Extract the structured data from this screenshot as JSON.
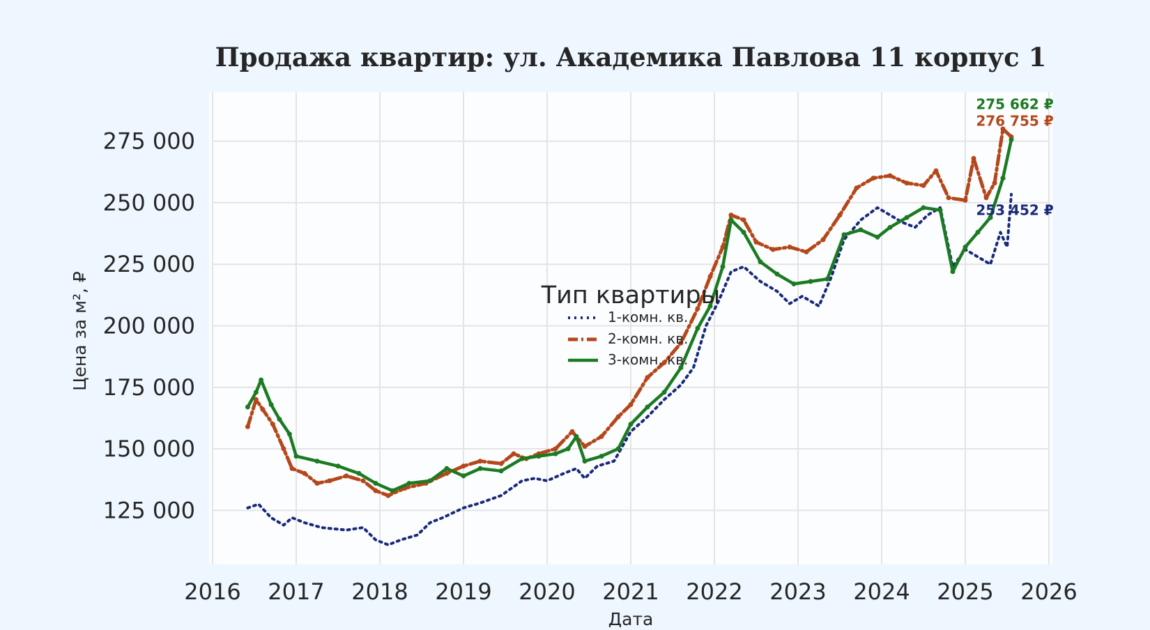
{
  "chart_data": {
    "type": "line",
    "title": "Продажа квартир: ул. Академика Павлова 11 корпус 1",
    "xlabel": "Дата",
    "ylabel": "Цена за м², ₽",
    "xlim": [
      2016,
      2026
    ],
    "ylim": [
      103000,
      295000
    ],
    "x_ticks": [
      "2016",
      "2017",
      "2018",
      "2019",
      "2020",
      "2021",
      "2022",
      "2023",
      "2024",
      "2025",
      "2026"
    ],
    "y_ticks": [
      "125 000",
      "150 000",
      "175 000",
      "200 000",
      "225 000",
      "250 000",
      "275 000"
    ],
    "grid": true,
    "legend": {
      "title": "Тип квартиры",
      "placement": "center"
    },
    "colors": {
      "1-комн. кв.": "#1a2a7a",
      "2-комн. кв.": "#b5471a",
      "3-комн. кв.": "#1b7a22"
    },
    "series": [
      {
        "name": "1-комн. кв.",
        "style": "dotted",
        "end_label": "253 452 ₽",
        "points": [
          [
            2016.42,
            126000
          ],
          [
            2016.55,
            127500
          ],
          [
            2016.7,
            122000
          ],
          [
            2016.85,
            119000
          ],
          [
            2016.95,
            122000
          ],
          [
            2017.1,
            120000
          ],
          [
            2017.3,
            118000
          ],
          [
            2017.6,
            117000
          ],
          [
            2017.8,
            118000
          ],
          [
            2017.95,
            113000
          ],
          [
            2018.1,
            111000
          ],
          [
            2018.25,
            113000
          ],
          [
            2018.45,
            115000
          ],
          [
            2018.6,
            120000
          ],
          [
            2018.75,
            122000
          ],
          [
            2019.0,
            126000
          ],
          [
            2019.2,
            128000
          ],
          [
            2019.45,
            131000
          ],
          [
            2019.7,
            137000
          ],
          [
            2019.85,
            138000
          ],
          [
            2020.0,
            137000
          ],
          [
            2020.2,
            140000
          ],
          [
            2020.35,
            142000
          ],
          [
            2020.45,
            138000
          ],
          [
            2020.6,
            143000
          ],
          [
            2020.8,
            145000
          ],
          [
            2021.0,
            157000
          ],
          [
            2021.2,
            163000
          ],
          [
            2021.4,
            170000
          ],
          [
            2021.6,
            176000
          ],
          [
            2021.75,
            183000
          ],
          [
            2021.9,
            200000
          ],
          [
            2022.05,
            210000
          ],
          [
            2022.2,
            222000
          ],
          [
            2022.35,
            224000
          ],
          [
            2022.55,
            218000
          ],
          [
            2022.75,
            214000
          ],
          [
            2022.9,
            209000
          ],
          [
            2023.05,
            212000
          ],
          [
            2023.25,
            208000
          ],
          [
            2023.4,
            220000
          ],
          [
            2023.55,
            235000
          ],
          [
            2023.75,
            243000
          ],
          [
            2023.95,
            248000
          ],
          [
            2024.1,
            245000
          ],
          [
            2024.25,
            242000
          ],
          [
            2024.4,
            240000
          ],
          [
            2024.55,
            245000
          ],
          [
            2024.7,
            248000
          ],
          [
            2024.85,
            224000
          ],
          [
            2025.0,
            231000
          ],
          [
            2025.15,
            228000
          ],
          [
            2025.3,
            225000
          ],
          [
            2025.42,
            238000
          ],
          [
            2025.5,
            232000
          ],
          [
            2025.55,
            253452
          ]
        ]
      },
      {
        "name": "2-комн. кв.",
        "style": "dashdot",
        "end_label": "276 755 ₽",
        "points": [
          [
            2016.42,
            159000
          ],
          [
            2016.52,
            170000
          ],
          [
            2016.6,
            166000
          ],
          [
            2016.72,
            160000
          ],
          [
            2016.85,
            150000
          ],
          [
            2016.95,
            142000
          ],
          [
            2017.1,
            140000
          ],
          [
            2017.25,
            136000
          ],
          [
            2017.4,
            137000
          ],
          [
            2017.6,
            139000
          ],
          [
            2017.8,
            137000
          ],
          [
            2017.95,
            133000
          ],
          [
            2018.1,
            131000
          ],
          [
            2018.3,
            134000
          ],
          [
            2018.55,
            136000
          ],
          [
            2018.8,
            140000
          ],
          [
            2019.0,
            143000
          ],
          [
            2019.2,
            145000
          ],
          [
            2019.45,
            144000
          ],
          [
            2019.6,
            148000
          ],
          [
            2019.75,
            146000
          ],
          [
            2019.9,
            148000
          ],
          [
            2020.1,
            150000
          ],
          [
            2020.3,
            157000
          ],
          [
            2020.45,
            151000
          ],
          [
            2020.65,
            155000
          ],
          [
            2020.85,
            163000
          ],
          [
            2021.0,
            168000
          ],
          [
            2021.2,
            179000
          ],
          [
            2021.4,
            185000
          ],
          [
            2021.6,
            193000
          ],
          [
            2021.8,
            207000
          ],
          [
            2021.95,
            220000
          ],
          [
            2022.1,
            232000
          ],
          [
            2022.2,
            245000
          ],
          [
            2022.35,
            243000
          ],
          [
            2022.5,
            234000
          ],
          [
            2022.7,
            231000
          ],
          [
            2022.9,
            232000
          ],
          [
            2023.1,
            230000
          ],
          [
            2023.3,
            235000
          ],
          [
            2023.5,
            245000
          ],
          [
            2023.7,
            256000
          ],
          [
            2023.9,
            260000
          ],
          [
            2024.1,
            261000
          ],
          [
            2024.3,
            258000
          ],
          [
            2024.5,
            257000
          ],
          [
            2024.65,
            263000
          ],
          [
            2024.8,
            252000
          ],
          [
            2025.0,
            251000
          ],
          [
            2025.1,
            268000
          ],
          [
            2025.25,
            252000
          ],
          [
            2025.35,
            258000
          ],
          [
            2025.45,
            280000
          ],
          [
            2025.55,
            276755
          ]
        ]
      },
      {
        "name": "3-комн. кв.",
        "style": "solid",
        "end_label": "275 662 ₽",
        "points": [
          [
            2016.42,
            167000
          ],
          [
            2016.52,
            173000
          ],
          [
            2016.58,
            178000
          ],
          [
            2016.7,
            168000
          ],
          [
            2016.8,
            162000
          ],
          [
            2016.92,
            156000
          ],
          [
            2017.0,
            147000
          ],
          [
            2017.25,
            145000
          ],
          [
            2017.5,
            143000
          ],
          [
            2017.75,
            140000
          ],
          [
            2017.95,
            136000
          ],
          [
            2018.15,
            133000
          ],
          [
            2018.35,
            136000
          ],
          [
            2018.6,
            137000
          ],
          [
            2018.8,
            142000
          ],
          [
            2019.0,
            139000
          ],
          [
            2019.2,
            142000
          ],
          [
            2019.45,
            141000
          ],
          [
            2019.7,
            146000
          ],
          [
            2019.9,
            147000
          ],
          [
            2020.1,
            148000
          ],
          [
            2020.25,
            150000
          ],
          [
            2020.35,
            155000
          ],
          [
            2020.45,
            145000
          ],
          [
            2020.65,
            147000
          ],
          [
            2020.85,
            150000
          ],
          [
            2021.0,
            160000
          ],
          [
            2021.2,
            167000
          ],
          [
            2021.4,
            173000
          ],
          [
            2021.6,
            183000
          ],
          [
            2021.8,
            199000
          ],
          [
            2021.95,
            208000
          ],
          [
            2022.1,
            224000
          ],
          [
            2022.2,
            243000
          ],
          [
            2022.35,
            238000
          ],
          [
            2022.55,
            226000
          ],
          [
            2022.75,
            221000
          ],
          [
            2022.95,
            217000
          ],
          [
            2023.15,
            218000
          ],
          [
            2023.35,
            219000
          ],
          [
            2023.55,
            237000
          ],
          [
            2023.75,
            239000
          ],
          [
            2023.95,
            236000
          ],
          [
            2024.1,
            240000
          ],
          [
            2024.3,
            244000
          ],
          [
            2024.5,
            248000
          ],
          [
            2024.7,
            247000
          ],
          [
            2024.85,
            222000
          ],
          [
            2025.0,
            232000
          ],
          [
            2025.15,
            238000
          ],
          [
            2025.3,
            244000
          ],
          [
            2025.45,
            260000
          ],
          [
            2025.55,
            275662
          ]
        ]
      }
    ]
  }
}
